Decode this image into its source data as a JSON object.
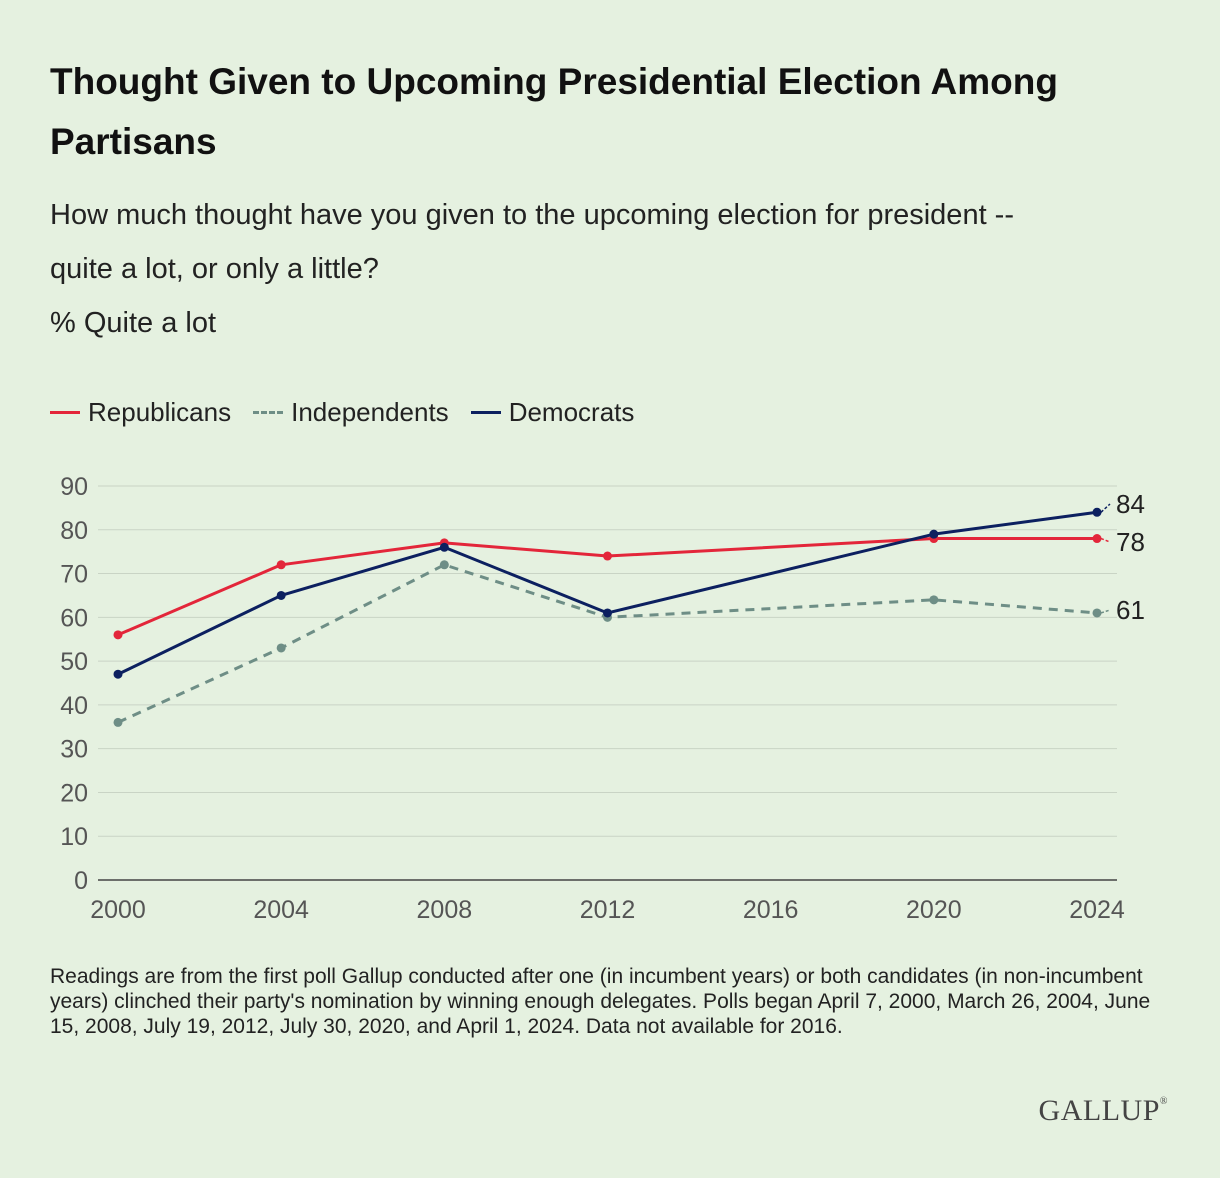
{
  "header": {
    "title": "Thought Given to Upcoming Presidential Election Among Partisans",
    "question_line1": "How much thought have you given to the upcoming election for president --",
    "question_line2": "quite a lot, or only a little?",
    "measure": "% Quite a lot"
  },
  "footnote": "Readings are from the first poll Gallup conducted after one (in incumbent years) or both candidates (in non-incumbent years) clinched their party's nomination by winning enough delegates. Polls began April 7, 2000, March 26, 2004, June 15, 2008, July 19, 2012, July 30, 2020, and April 1, 2024. Data not available for 2016.",
  "logo": "GALLUP",
  "chart_data": {
    "type": "line",
    "title": "Thought Given to Upcoming Presidential Election Among Partisans",
    "subtitle": "How much thought have you given to the upcoming election for president -- quite a lot, or only a little?",
    "ylabel": "% Quite a lot",
    "xlabel": "",
    "x_ticks": [
      2000,
      2004,
      2008,
      2012,
      2016,
      2020,
      2024
    ],
    "xlim": [
      2000,
      2024
    ],
    "y_ticks": [
      0,
      10,
      20,
      30,
      40,
      50,
      60,
      70,
      80,
      90
    ],
    "ylim": [
      0,
      90
    ],
    "grid": true,
    "legend_position": "top-left",
    "series": [
      {
        "name": "Republicans",
        "color": "#e3263a",
        "style": "solid",
        "x": [
          2000,
          2004,
          2008,
          2012,
          2020,
          2024
        ],
        "values": [
          56,
          72,
          77,
          74,
          78,
          78
        ],
        "end_label": "78"
      },
      {
        "name": "Independents",
        "color": "#6e8e86",
        "style": "dashed",
        "x": [
          2000,
          2004,
          2008,
          2012,
          2020,
          2024
        ],
        "values": [
          36,
          53,
          72,
          60,
          64,
          61
        ],
        "end_label": "61"
      },
      {
        "name": "Democrats",
        "color": "#0c2060",
        "style": "solid",
        "x": [
          2000,
          2004,
          2008,
          2012,
          2020,
          2024
        ],
        "values": [
          47,
          65,
          76,
          61,
          79,
          84
        ],
        "end_label": "84"
      }
    ]
  }
}
